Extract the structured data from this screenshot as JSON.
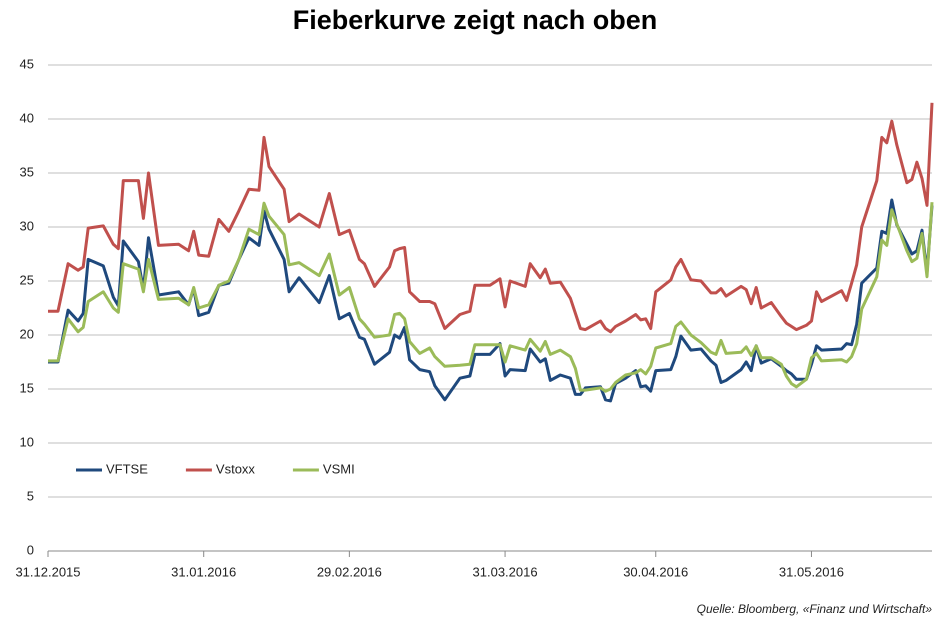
{
  "chart_data": {
    "type": "line",
    "title": "Fieberkurve zeigt nach oben",
    "note": "Quelle: Bloomberg, «Finanz und Wirtschaft»",
    "x": [
      "31.12.2015",
      "02.01.2016",
      "04.01.2016",
      "06.01.2016",
      "07.01.2016",
      "08.01.2016",
      "11.01.2016",
      "13.01.2016",
      "14.01.2016",
      "15.01.2016",
      "18.01.2016",
      "19.01.2016",
      "20.01.2016",
      "22.01.2016",
      "26.01.2016",
      "28.01.2016",
      "29.01.2016",
      "30.01.2016",
      "01.02.2016",
      "03.02.2016",
      "05.02.2016",
      "07.02.2016",
      "09.02.2016",
      "11.02.2016",
      "12.02.2016",
      "13.02.2016",
      "16.02.2016",
      "17.02.2016",
      "19.02.2016",
      "23.02.2016",
      "25.02.2016",
      "27.02.2016",
      "29.02.2016",
      "02.03.2016",
      "03.03.2016",
      "05.03.2016",
      "08.03.2016",
      "09.03.2016",
      "10.03.2016",
      "11.03.2016",
      "12.03.2016",
      "14.03.2016",
      "16.03.2016",
      "17.03.2016",
      "19.03.2016",
      "22.03.2016",
      "24.03.2016",
      "25.03.2016",
      "28.03.2016",
      "30.03.2016",
      "31.03.2016",
      "01.04.2016",
      "04.04.2016",
      "05.04.2016",
      "07.04.2016",
      "08.04.2016",
      "09.04.2016",
      "11.04.2016",
      "13.04.2016",
      "14.04.2016",
      "15.04.2016",
      "16.04.2016",
      "19.04.2016",
      "20.04.2016",
      "21.04.2016",
      "22.04.2016",
      "24.04.2016",
      "26.04.2016",
      "27.04.2016",
      "28.04.2016",
      "29.04.2016",
      "30.04.2016",
      "03.05.2016",
      "04.05.2016",
      "05.05.2016",
      "07.05.2016",
      "09.05.2016",
      "11.05.2016",
      "12.05.2016",
      "13.05.2016",
      "14.05.2016",
      "17.05.2016",
      "18.05.2016",
      "19.05.2016",
      "20.05.2016",
      "21.05.2016",
      "23.05.2016",
      "25.05.2016",
      "26.05.2016",
      "27.05.2016",
      "28.05.2016",
      "30.05.2016",
      "31.05.2016",
      "01.06.2016",
      "02.06.2016",
      "06.06.2016",
      "07.06.2016",
      "08.06.2016",
      "09.06.2016",
      "10.06.2016",
      "13.06.2016",
      "14.06.2016",
      "15.06.2016",
      "16.06.2016",
      "17.06.2016",
      "19.06.2016",
      "20.06.2016",
      "21.06.2016",
      "22.06.2016",
      "23.06.2016",
      "24.06.2016"
    ],
    "series": [
      {
        "name": "VFTSE",
        "color": "#1f497d",
        "values": [
          17.5,
          17.5,
          22.3,
          21.3,
          22,
          27,
          26.4,
          23.5,
          22.7,
          28.7,
          26.8,
          24.2,
          29,
          23.7,
          24,
          22.8,
          24.3,
          21.8,
          22.1,
          24.6,
          24.8,
          27,
          29,
          28.3,
          31.5,
          29.8,
          27,
          24,
          25.3,
          23,
          25.5,
          21.5,
          22,
          19.8,
          19.6,
          17.3,
          18.4,
          20,
          19.7,
          20.7,
          17.7,
          16.8,
          16.6,
          15.3,
          14,
          16,
          16.2,
          18.2,
          18.2,
          19.2,
          16.2,
          16.8,
          16.7,
          18.7,
          17.5,
          17.8,
          15.8,
          16.3,
          16,
          14.5,
          14.5,
          15.1,
          15.2,
          14,
          13.9,
          15.5,
          16,
          16.7,
          15.2,
          15.3,
          14.8,
          16.7,
          16.8,
          18,
          19.9,
          18.6,
          18.7,
          17.6,
          17.2,
          15.6,
          15.8,
          16.8,
          17.5,
          16.7,
          19,
          17.4,
          17.8,
          17.1,
          16.7,
          16.4,
          15.9,
          15.9,
          17.3,
          19,
          18.6,
          18.7,
          19.2,
          19.1,
          21,
          24.8,
          26.2,
          29.6,
          29.4,
          32.5,
          30.2,
          28.4,
          27.5,
          27.8,
          29.7,
          25.8,
          32
        ]
      },
      {
        "name": "Vstoxx",
        "color": "#c0504d",
        "values": [
          22.2,
          22.2,
          26.6,
          26,
          26.3,
          29.9,
          30.1,
          28.4,
          28,
          34.3,
          34.3,
          30.8,
          35,
          28.3,
          28.4,
          27.8,
          29.6,
          27.4,
          27.3,
          30.7,
          29.6,
          31.5,
          33.5,
          33.4,
          38.3,
          35.6,
          33.5,
          30.5,
          31.2,
          30,
          33.1,
          29.3,
          29.7,
          27,
          26.6,
          24.5,
          26.3,
          27.8,
          28,
          28.1,
          24,
          23.1,
          23.1,
          22.9,
          20.6,
          21.9,
          22.2,
          24.6,
          24.6,
          25.2,
          22.6,
          25,
          24.5,
          26.6,
          25.3,
          26.1,
          24.8,
          24.9,
          23.4,
          22,
          20.6,
          20.5,
          21.3,
          20.6,
          20.3,
          20.8,
          21.3,
          21.9,
          21.4,
          21.5,
          20.6,
          24,
          25.1,
          26.3,
          27,
          25.1,
          25,
          23.9,
          23.9,
          24.3,
          23.6,
          24.5,
          24.2,
          22.9,
          24.4,
          22.5,
          23,
          21.7,
          21.1,
          20.8,
          20.5,
          20.9,
          21.3,
          24,
          23.1,
          24.1,
          23.2,
          24.8,
          26.5,
          30,
          34.3,
          38.3,
          37.8,
          39.8,
          37.6,
          34.1,
          34.4,
          36,
          34.5,
          32,
          41.5
        ]
      },
      {
        "name": "VSMI",
        "color": "#9bbb59",
        "values": [
          17.6,
          17.6,
          21.5,
          20.3,
          20.7,
          23.1,
          24,
          22.5,
          22.1,
          26.6,
          26.1,
          24,
          27,
          23.3,
          23.4,
          22.8,
          24.4,
          22.5,
          22.8,
          24.6,
          25,
          27,
          29.8,
          29.3,
          32.2,
          31,
          29.3,
          26.5,
          26.7,
          25.5,
          27.5,
          23.7,
          24.4,
          21.5,
          21,
          19.8,
          20,
          21.9,
          22,
          21.5,
          19.4,
          18.3,
          18.8,
          18,
          17.1,
          17.2,
          17.3,
          19.1,
          19.1,
          19.1,
          17.5,
          19,
          18.6,
          19.6,
          18.5,
          19.4,
          18.2,
          18.6,
          18,
          16.9,
          14.9,
          14.9,
          15.1,
          14.8,
          15,
          15.6,
          16.3,
          16.5,
          16.8,
          16.4,
          17.1,
          18.8,
          19.2,
          20.8,
          21.2,
          20,
          19.3,
          18.4,
          18.2,
          19.5,
          18.3,
          18.4,
          18.9,
          18.1,
          19,
          17.9,
          17.9,
          17.3,
          16.2,
          15.5,
          15.2,
          15.9,
          17.9,
          18.3,
          17.6,
          17.7,
          17.5,
          18,
          19.2,
          22.4,
          25.4,
          28.8,
          28.3,
          31.6,
          30.3,
          27.8,
          26.8,
          27.1,
          29.4,
          25.4,
          32.3
        ]
      }
    ],
    "xlim": [
      "31.12.2015",
      "24.06.2016"
    ],
    "xticks": [
      "31.12.2015",
      "31.01.2016",
      "29.02.2016",
      "31.03.2016",
      "30.04.2016",
      "31.05.2016"
    ],
    "ylim": [
      0,
      45
    ],
    "yticks": [
      0,
      5,
      10,
      15,
      20,
      25,
      30,
      35,
      40,
      45
    ],
    "grid": true,
    "legend": "lower left"
  }
}
